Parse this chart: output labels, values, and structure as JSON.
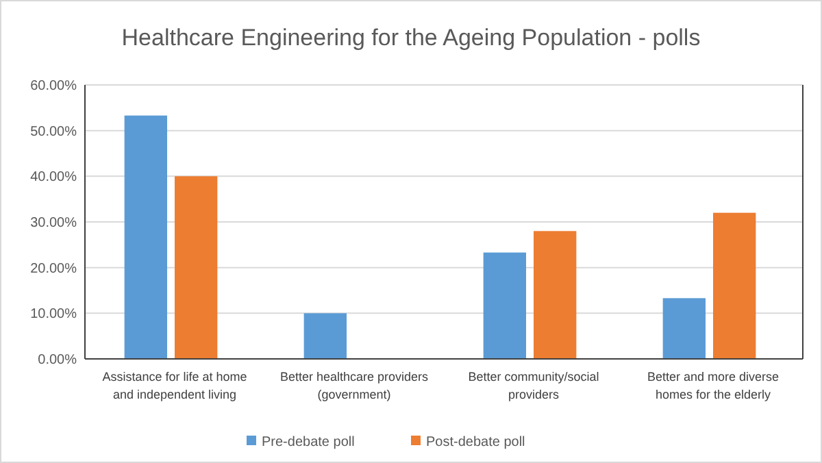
{
  "chart_data": {
    "type": "bar",
    "title": "Healthcare Engineering for the Ageing Population - polls",
    "categories": [
      "Assistance for life at home and independent living",
      "Better healthcare providers (government)",
      "Better community/social providers",
      "Better and more diverse homes for the elderly"
    ],
    "series": [
      {
        "name": "Pre-debate poll",
        "color": "#5b9bd5",
        "values": [
          53.3,
          10,
          23.3,
          13.3
        ]
      },
      {
        "name": "Post-debate poll",
        "color": "#ed7d31",
        "values": [
          40,
          0,
          28,
          32
        ]
      }
    ],
    "ylim": [
      0,
      60
    ],
    "yticks": [
      {
        "value": 0,
        "label": "0.00%"
      },
      {
        "value": 10,
        "label": "10.00%"
      },
      {
        "value": 20,
        "label": "20.00%"
      },
      {
        "value": 30,
        "label": "30.00%"
      },
      {
        "value": 40,
        "label": "40.00%"
      },
      {
        "value": 50,
        "label": "50.00%"
      },
      {
        "value": 60,
        "label": "60.00%"
      }
    ],
    "grid": "y",
    "legend": "bottom"
  }
}
